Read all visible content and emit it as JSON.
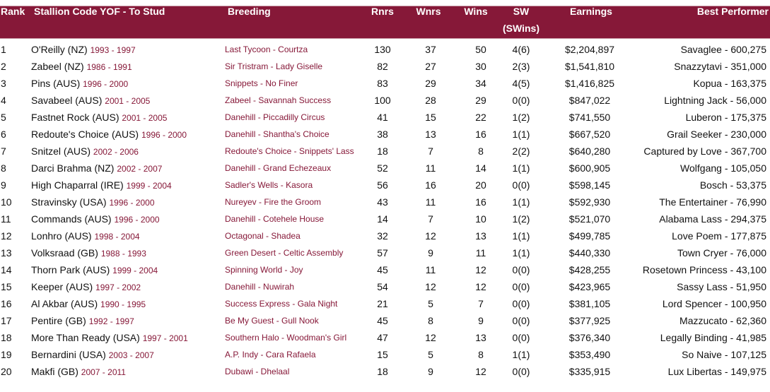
{
  "colors": {
    "header_bg": "#861838",
    "accent_text": "#861838"
  },
  "headers": {
    "rank": "Rank",
    "stallion": "Stallion Code YOF - To Stud",
    "breeding": "Breeding",
    "rnrs": "Rnrs",
    "wnrs": "Wnrs",
    "wins": "Wins",
    "sw": "SW",
    "sw2": "(SWins)",
    "earnings": "Earnings",
    "best": "Best Performer"
  },
  "rows": [
    {
      "rank": "1",
      "stallion": "O'Reilly (NZ)",
      "years": "1993 - 1997",
      "breeding": "Last Tycoon - Courtza",
      "rnrs": "130",
      "wnrs": "37",
      "wins": "50",
      "sw": "4(6)",
      "earnings": "$2,204,897",
      "best": "Savaglee - 600,275"
    },
    {
      "rank": "2",
      "stallion": "Zabeel (NZ)",
      "years": "1986 - 1991",
      "breeding": "Sir Tristram - Lady Giselle",
      "rnrs": "82",
      "wnrs": "27",
      "wins": "30",
      "sw": "2(3)",
      "earnings": "$1,541,810",
      "best": "Snazzytavi - 351,000"
    },
    {
      "rank": "3",
      "stallion": "Pins (AUS)",
      "years": "1996 - 2000",
      "breeding": "Snippets - No Finer",
      "rnrs": "83",
      "wnrs": "29",
      "wins": "34",
      "sw": "4(5)",
      "earnings": "$1,416,825",
      "best": "Kopua - 163,375"
    },
    {
      "rank": "4",
      "stallion": "Savabeel (AUS)",
      "years": "2001 - 2005",
      "breeding": "Zabeel - Savannah Success",
      "rnrs": "100",
      "wnrs": "28",
      "wins": "29",
      "sw": "0(0)",
      "earnings": "$847,022",
      "best": "Lightning Jack - 56,000"
    },
    {
      "rank": "5",
      "stallion": "Fastnet Rock (AUS)",
      "years": "2001 - 2005",
      "breeding": "Danehill - Piccadilly Circus",
      "rnrs": "41",
      "wnrs": "15",
      "wins": "22",
      "sw": "1(2)",
      "earnings": "$741,550",
      "best": "Luberon - 175,375"
    },
    {
      "rank": "6",
      "stallion": "Redoute's Choice (AUS)",
      "years": "1996 - 2000",
      "breeding": "Danehill - Shantha's Choice",
      "rnrs": "38",
      "wnrs": "13",
      "wins": "16",
      "sw": "1(1)",
      "earnings": "$667,520",
      "best": "Grail Seeker - 230,000"
    },
    {
      "rank": "7",
      "stallion": "Snitzel (AUS)",
      "years": "2002 - 2006",
      "breeding": "Redoute's Choice - Snippets' Lass",
      "rnrs": "18",
      "wnrs": "7",
      "wins": "8",
      "sw": "2(2)",
      "earnings": "$640,280",
      "best": "Captured by Love - 367,700"
    },
    {
      "rank": "8",
      "stallion": "Darci Brahma (NZ)",
      "years": "2002 - 2007",
      "breeding": "Danehill - Grand Echezeaux",
      "rnrs": "52",
      "wnrs": "11",
      "wins": "14",
      "sw": "1(1)",
      "earnings": "$600,905",
      "best": "Wolfgang - 105,050"
    },
    {
      "rank": "9",
      "stallion": "High Chaparral (IRE)",
      "years": "1999 - 2004",
      "breeding": "Sadler's Wells - Kasora",
      "rnrs": "56",
      "wnrs": "16",
      "wins": "20",
      "sw": "0(0)",
      "earnings": "$598,145",
      "best": "Bosch - 53,375"
    },
    {
      "rank": "10",
      "stallion": "Stravinsky (USA)",
      "years": "1996 - 2000",
      "breeding": "Nureyev - Fire the Groom",
      "rnrs": "43",
      "wnrs": "11",
      "wins": "16",
      "sw": "1(1)",
      "earnings": "$592,930",
      "best": "The Entertainer - 76,990"
    },
    {
      "rank": "11",
      "stallion": "Commands (AUS)",
      "years": "1996 - 2000",
      "breeding": "Danehill - Cotehele House",
      "rnrs": "14",
      "wnrs": "7",
      "wins": "10",
      "sw": "1(2)",
      "earnings": "$521,070",
      "best": "Alabama Lass - 294,375"
    },
    {
      "rank": "12",
      "stallion": "Lonhro (AUS)",
      "years": "1998 - 2004",
      "breeding": "Octagonal - Shadea",
      "rnrs": "32",
      "wnrs": "12",
      "wins": "13",
      "sw": "1(1)",
      "earnings": "$499,785",
      "best": "Love Poem - 177,875"
    },
    {
      "rank": "13",
      "stallion": "Volksraad (GB)",
      "years": "1988 - 1993",
      "breeding": "Green Desert - Celtic Assembly",
      "rnrs": "57",
      "wnrs": "9",
      "wins": "11",
      "sw": "1(1)",
      "earnings": "$440,330",
      "best": "Town Cryer - 76,000"
    },
    {
      "rank": "14",
      "stallion": "Thorn Park (AUS)",
      "years": "1999 - 2004",
      "breeding": "Spinning World - Joy",
      "rnrs": "45",
      "wnrs": "11",
      "wins": "12",
      "sw": "0(0)",
      "earnings": "$428,255",
      "best": "Rosetown Princess - 43,100"
    },
    {
      "rank": "15",
      "stallion": "Keeper (AUS)",
      "years": "1997 - 2002",
      "breeding": "Danehill - Nuwirah",
      "rnrs": "54",
      "wnrs": "12",
      "wins": "12",
      "sw": "0(0)",
      "earnings": "$423,965",
      "best": "Sassy Lass - 51,950"
    },
    {
      "rank": "16",
      "stallion": "Al Akbar (AUS)",
      "years": "1990 - 1995",
      "breeding": "Success Express - Gala Night",
      "rnrs": "21",
      "wnrs": "5",
      "wins": "7",
      "sw": "0(0)",
      "earnings": "$381,105",
      "best": "Lord Spencer - 100,950"
    },
    {
      "rank": "17",
      "stallion": "Pentire (GB)",
      "years": "1992 - 1997",
      "breeding": "Be My Guest - Gull Nook",
      "rnrs": "45",
      "wnrs": "8",
      "wins": "9",
      "sw": "0(0)",
      "earnings": "$377,925",
      "best": "Mazzucato - 62,360"
    },
    {
      "rank": "18",
      "stallion": "More Than Ready (USA)",
      "years": "1997 - 2001",
      "breeding": "Southern Halo - Woodman's Girl",
      "rnrs": "47",
      "wnrs": "12",
      "wins": "13",
      "sw": "0(0)",
      "earnings": "$376,340",
      "best": "Legally Binding - 41,985"
    },
    {
      "rank": "19",
      "stallion": "Bernardini (USA)",
      "years": "2003 - 2007",
      "breeding": "A.P. Indy - Cara Rafaela",
      "rnrs": "15",
      "wnrs": "5",
      "wins": "8",
      "sw": "1(1)",
      "earnings": "$353,490",
      "best": "So Naive - 107,125"
    },
    {
      "rank": "20",
      "stallion": "Makfi (GB)",
      "years": "2007 - 2011",
      "breeding": "Dubawi - Dhelaal",
      "rnrs": "18",
      "wnrs": "9",
      "wins": "12",
      "sw": "0(0)",
      "earnings": "$335,915",
      "best": "Lux Libertas - 149,975"
    }
  ]
}
